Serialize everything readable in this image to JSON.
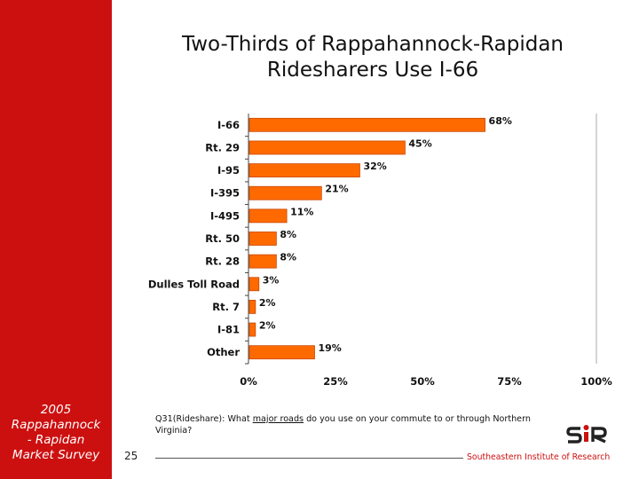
{
  "slide": {
    "title_lines": [
      "Two-Thirds of Rappahannock-Rapidan",
      "Ridesharers Use I-66"
    ],
    "sidebar_lines": [
      "2005",
      "Rappahannock",
      "- Rapidan",
      "Market Survey"
    ],
    "question_prefix": "Q31(Rideshare): What ",
    "question_underlined": "major roads",
    "question_suffix": " do you use on your commute to or through Northern Virginia?",
    "page_number": "25",
    "organization": "Southeastern Institute of Research",
    "logo_text": "SIR",
    "colors": {
      "sidebar": "#cc1010",
      "bar": "#ff6a00",
      "bar_edge": "#c84800",
      "brand": "#cc1010"
    }
  },
  "chart_data": {
    "type": "bar",
    "orientation": "horizontal",
    "categories": [
      "I-66",
      "Rt. 29",
      "I-95",
      "I-395",
      "I-495",
      "Rt. 50",
      "Rt. 28",
      "Dulles Toll Road",
      "Rt. 7",
      "I-81",
      "Other"
    ],
    "values": [
      68,
      45,
      32,
      21,
      11,
      8,
      8,
      3,
      2,
      2,
      19
    ],
    "value_labels": [
      "68%",
      "45%",
      "32%",
      "21%",
      "11%",
      "8%",
      "8%",
      "3%",
      "2%",
      "2%",
      "19%"
    ],
    "xticks": [
      0,
      25,
      50,
      75,
      100
    ],
    "xtick_labels": [
      "0%",
      "25%",
      "50%",
      "75%",
      "100%"
    ],
    "xlim": [
      0,
      100
    ],
    "title": "Two-Thirds of Rappahannock-Rapidan Ridesharers Use I-66",
    "xlabel": "",
    "ylabel": "",
    "grid": false,
    "legend": "none"
  }
}
